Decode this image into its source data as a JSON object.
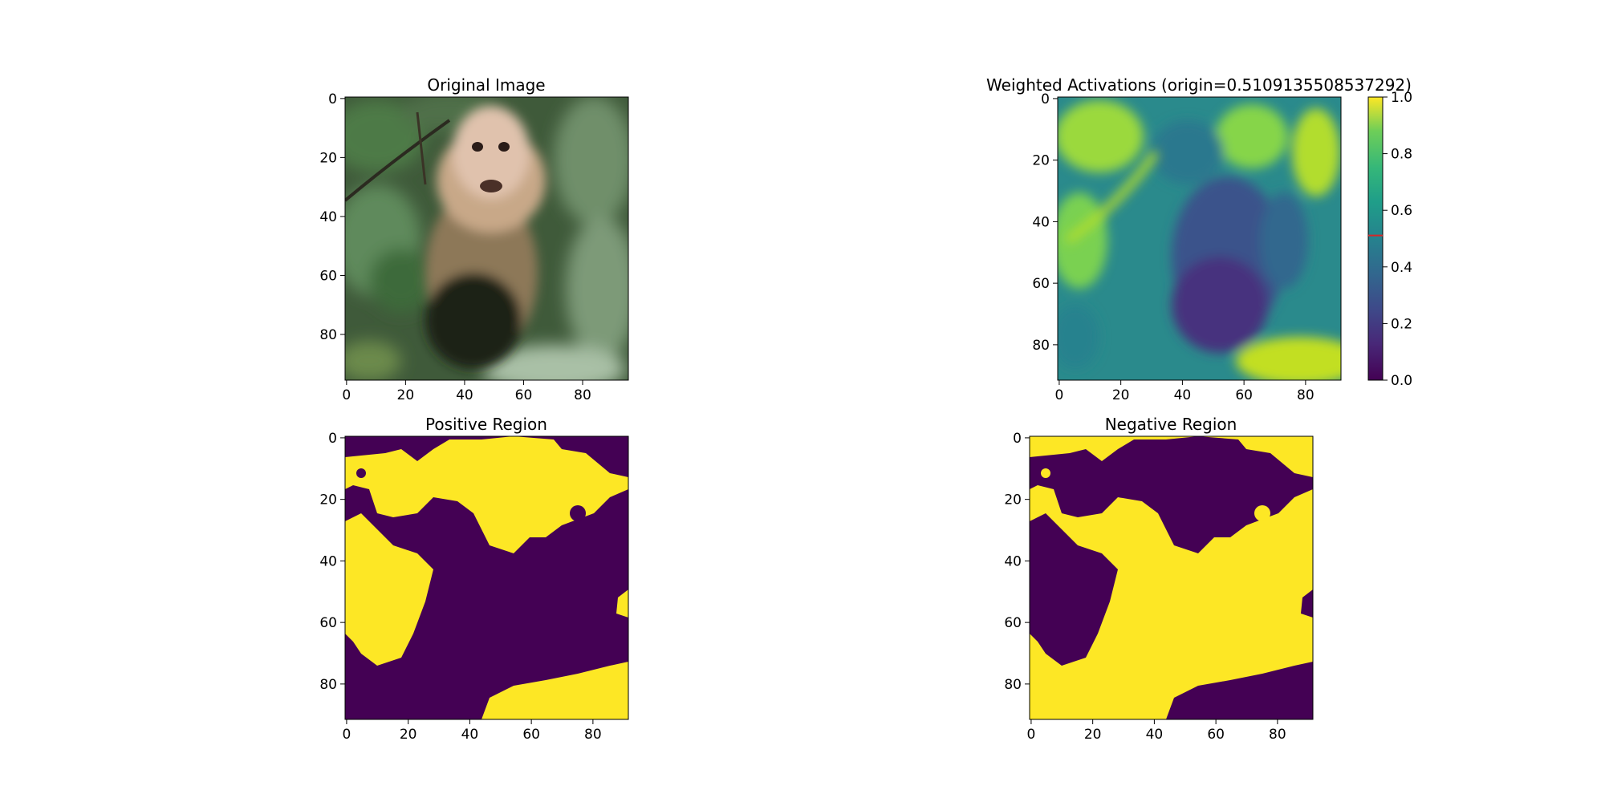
{
  "chart_data": [
    {
      "type": "image",
      "title": "Original Image",
      "content": "photo",
      "x_ticks": [
        "0",
        "20",
        "40",
        "60",
        "80"
      ],
      "y_ticks": [
        "0",
        "20",
        "40",
        "60",
        "80"
      ],
      "xlim": [
        -0.5,
        95.5
      ],
      "ylim": [
        95.5,
        -0.5
      ]
    },
    {
      "type": "heatmap",
      "title": "Weighted Activations (origin=0.5109135508537292)",
      "colormap": "viridis",
      "x_ticks": [
        "0",
        "20",
        "40",
        "60",
        "80"
      ],
      "y_ticks": [
        "0",
        "20",
        "40",
        "60",
        "80"
      ],
      "xlim": [
        -0.5,
        91.5
      ],
      "ylim": [
        91.5,
        -0.5
      ],
      "colorbar": {
        "ticks": [
          "0.0",
          "0.2",
          "0.4",
          "0.6",
          "0.8",
          "1.0"
        ],
        "range": [
          0.0,
          1.0
        ],
        "marker_value": 0.5109135508537292,
        "marker_color": "#d62728"
      }
    },
    {
      "type": "heatmap",
      "title": "Positive Region",
      "colormap": "viridis-binary",
      "x_ticks": [
        "0",
        "20",
        "40",
        "60",
        "80"
      ],
      "y_ticks": [
        "0",
        "20",
        "40",
        "60",
        "80"
      ],
      "xlim": [
        -0.5,
        91.5
      ],
      "ylim": [
        91.5,
        -0.5
      ]
    },
    {
      "type": "heatmap",
      "title": "Negative Region",
      "colormap": "viridis-binary",
      "x_ticks": [
        "0",
        "20",
        "40",
        "60",
        "80"
      ],
      "y_ticks": [
        "0",
        "20",
        "40",
        "60",
        "80"
      ],
      "xlim": [
        -0.5,
        91.5
      ],
      "ylim": [
        91.5,
        -0.5
      ]
    }
  ],
  "colors": {
    "low": "#440154",
    "high": "#fde725",
    "marker": "#d62728"
  }
}
